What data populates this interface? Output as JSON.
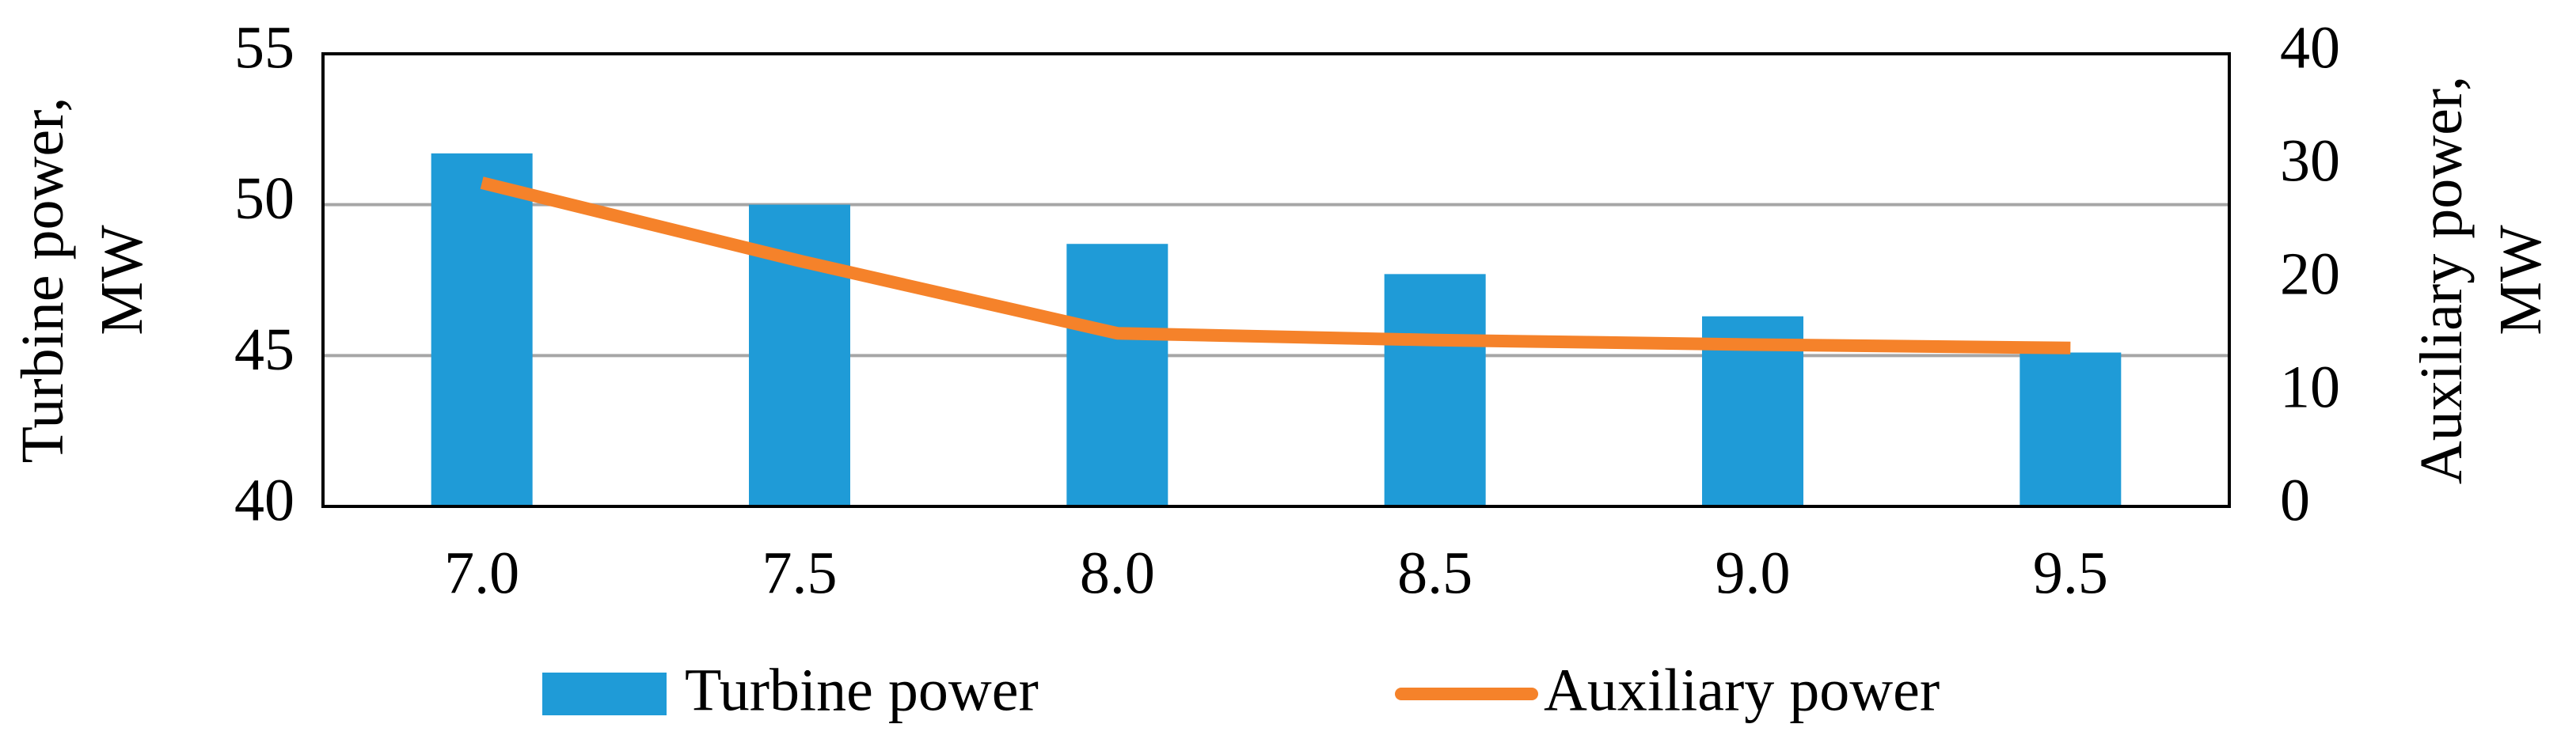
{
  "chart_data": {
    "type": "bar",
    "categories": [
      "7.0",
      "7.5",
      "8.0",
      "8.5",
      "9.0",
      "9.5"
    ],
    "series": [
      {
        "name": "Turbine power",
        "type": "bar",
        "color": "#1f9bd7",
        "values": [
          51.7,
          50.0,
          48.7,
          47.7,
          46.3,
          45.1
        ]
      },
      {
        "name": "Auxiliary power",
        "type": "line",
        "axis": "y2",
        "color": "#f5822a",
        "values": [
          28.6,
          21.7,
          15.3,
          14.7,
          14.3,
          14.0
        ]
      }
    ],
    "y_label": "Turbine power, MW",
    "y2_label": "Auxiliary power, MW",
    "ylim": [
      40,
      55
    ],
    "yticks": [
      40,
      45,
      50,
      55
    ],
    "y2lim": [
      0,
      40
    ],
    "y2ticks": [
      0,
      10,
      20,
      30,
      40
    ],
    "grid": true,
    "legend": "bottom"
  }
}
